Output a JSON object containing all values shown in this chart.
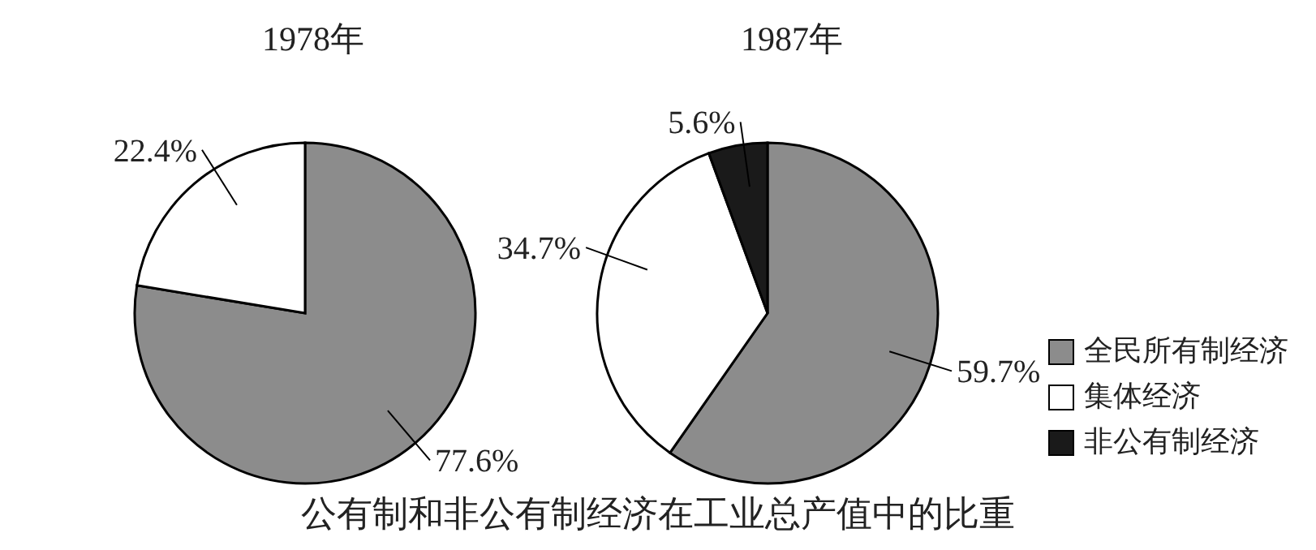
{
  "chart_data": [
    {
      "type": "pie",
      "title": "1978年",
      "categories": [
        null,
        null
      ],
      "values": [
        77.6,
        22.4
      ],
      "colors": [
        "#8c8c8c",
        "#ffffff"
      ],
      "value_labels": [
        "77.6%",
        "22.4%"
      ],
      "legend": false,
      "annotations": [
        "公有制和非公有制经济在工业总产值中的比重"
      ]
    },
    {
      "type": "pie",
      "title": "1987年",
      "categories": [
        "全民所有制经济",
        "集体经济",
        "非公有制经济"
      ],
      "values": [
        59.7,
        34.7,
        5.6
      ],
      "colors": [
        "#8c8c8c",
        "#ffffff",
        "#1a1a1a"
      ],
      "value_labels": [
        "59.7%",
        "34.7%",
        "5.6%"
      ],
      "legend": "right"
    }
  ]
}
